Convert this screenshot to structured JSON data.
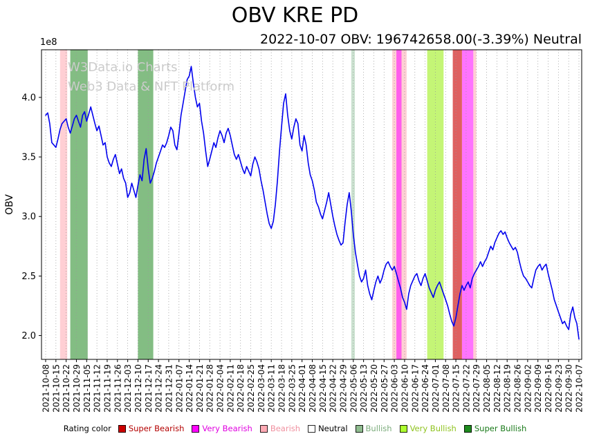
{
  "header": {
    "title": "OBV KRE PD",
    "subtitle": "2022-10-07 OBV: 196742658.00(-3.39%) Neutral"
  },
  "watermark": {
    "line1": "W3Data.io Charts",
    "line2": "Web3 Data & NFT Platform"
  },
  "axes": {
    "y_label": "OBV",
    "offset_label": "1e8"
  },
  "legend": {
    "title": "Rating color",
    "items": [
      {
        "label": "Super Bearish",
        "color": "#cc0000",
        "text_color": "#b40000"
      },
      {
        "label": "Very Bearish",
        "color": "#ff00ff",
        "text_color": "#e000e0"
      },
      {
        "label": "Bearish",
        "color": "#ffaab4",
        "text_color": "#f0909f"
      },
      {
        "label": "Neutral",
        "color": "#ffffff",
        "text_color": "#000000"
      },
      {
        "label": "Bullish",
        "color": "#8fbc8f",
        "text_color": "#7cac7c"
      },
      {
        "label": "Very Bullish",
        "color": "#adff2f",
        "text_color": "#8fc31f"
      },
      {
        "label": "Super Bullish",
        "color": "#1e8b1e",
        "text_color": "#1a7a1a"
      }
    ]
  },
  "chart_data": {
    "type": "line",
    "title": "OBV KRE PD",
    "ylabel": "OBV",
    "y_multiplier": "1e8",
    "latest": {
      "date": "2022-10-07",
      "obv": 196742658.0,
      "change_pct": -3.39,
      "rating": "Neutral"
    },
    "line_color": "#0000ee",
    "grid": "vertical dotted",
    "legend_position": "bottom outside",
    "ylim": [
      1.8,
      4.4
    ],
    "y_ticks": [
      2.0,
      2.5,
      3.0,
      3.5,
      4.0
    ],
    "y_tick_labels": [
      "2.0",
      "2.5",
      "3.0",
      "3.5",
      "4.0"
    ],
    "x_range_weeks": [
      0,
      52
    ],
    "x_tick_labels": [
      "2021-10-08",
      "2021-10-15",
      "2021-10-22",
      "2021-10-29",
      "2021-11-05",
      "2021-11-12",
      "2021-11-19",
      "2021-11-26",
      "2021-12-03",
      "2021-12-10",
      "2021-12-17",
      "2021-12-24",
      "2021-12-31",
      "2022-01-07",
      "2022-01-14",
      "2022-01-21",
      "2022-01-28",
      "2022-02-04",
      "2022-02-11",
      "2022-02-18",
      "2022-02-25",
      "2022-03-04",
      "2022-03-11",
      "2022-03-18",
      "2022-03-25",
      "2022-04-01",
      "2022-04-08",
      "2022-04-15",
      "2022-04-22",
      "2022-04-29",
      "2022-05-06",
      "2022-05-13",
      "2022-05-20",
      "2022-05-27",
      "2022-06-03",
      "2022-06-10",
      "2022-06-17",
      "2022-06-24",
      "2022-07-01",
      "2022-07-08",
      "2022-07-15",
      "2022-07-22",
      "2022-07-29",
      "2022-08-05",
      "2022-08-12",
      "2022-08-19",
      "2022-08-26",
      "2022-09-02",
      "2022-09-09",
      "2022-09-16",
      "2022-09-23",
      "2022-09-30",
      "2022-10-07"
    ],
    "series": [
      {
        "name": "OBV",
        "x_step_weeks": 0.2,
        "values": [
          3.85,
          3.87,
          3.78,
          3.62,
          3.6,
          3.58,
          3.65,
          3.73,
          3.78,
          3.8,
          3.82,
          3.75,
          3.7,
          3.76,
          3.82,
          3.85,
          3.8,
          3.75,
          3.85,
          3.88,
          3.8,
          3.86,
          3.92,
          3.85,
          3.78,
          3.72,
          3.76,
          3.68,
          3.6,
          3.62,
          3.5,
          3.45,
          3.42,
          3.48,
          3.52,
          3.44,
          3.36,
          3.4,
          3.32,
          3.28,
          3.16,
          3.2,
          3.28,
          3.22,
          3.16,
          3.26,
          3.35,
          3.3,
          3.48,
          3.57,
          3.4,
          3.28,
          3.32,
          3.38,
          3.45,
          3.5,
          3.55,
          3.6,
          3.58,
          3.62,
          3.68,
          3.75,
          3.72,
          3.6,
          3.56,
          3.7,
          3.85,
          3.95,
          4.05,
          4.15,
          4.18,
          4.26,
          4.12,
          4.0,
          3.92,
          3.95,
          3.8,
          3.7,
          3.55,
          3.42,
          3.48,
          3.55,
          3.62,
          3.58,
          3.66,
          3.72,
          3.68,
          3.62,
          3.7,
          3.74,
          3.68,
          3.6,
          3.52,
          3.48,
          3.52,
          3.46,
          3.4,
          3.36,
          3.42,
          3.38,
          3.34,
          3.44,
          3.5,
          3.46,
          3.4,
          3.3,
          3.22,
          3.12,
          3.02,
          2.94,
          2.9,
          2.96,
          3.1,
          3.3,
          3.55,
          3.75,
          3.95,
          4.03,
          3.85,
          3.72,
          3.65,
          3.75,
          3.82,
          3.78,
          3.6,
          3.55,
          3.68,
          3.6,
          3.45,
          3.35,
          3.3,
          3.22,
          3.12,
          3.08,
          3.02,
          2.98,
          3.05,
          3.12,
          3.2,
          3.1,
          3.0,
          2.92,
          2.85,
          2.8,
          2.76,
          2.78,
          2.95,
          3.1,
          3.2,
          3.05,
          2.85,
          2.7,
          2.6,
          2.5,
          2.45,
          2.48,
          2.55,
          2.42,
          2.35,
          2.3,
          2.38,
          2.45,
          2.5,
          2.44,
          2.48,
          2.55,
          2.6,
          2.62,
          2.58,
          2.55,
          2.58,
          2.52,
          2.46,
          2.4,
          2.32,
          2.28,
          2.22,
          2.35,
          2.42,
          2.46,
          2.5,
          2.52,
          2.46,
          2.42,
          2.48,
          2.52,
          2.46,
          2.4,
          2.36,
          2.32,
          2.38,
          2.42,
          2.45,
          2.4,
          2.35,
          2.3,
          2.25,
          2.18,
          2.12,
          2.08,
          2.15,
          2.25,
          2.35,
          2.42,
          2.38,
          2.42,
          2.45,
          2.4,
          2.48,
          2.52,
          2.55,
          2.58,
          2.62,
          2.58,
          2.62,
          2.65,
          2.7,
          2.75,
          2.72,
          2.78,
          2.82,
          2.86,
          2.88,
          2.85,
          2.87,
          2.82,
          2.78,
          2.75,
          2.72,
          2.74,
          2.7,
          2.62,
          2.55,
          2.5,
          2.48,
          2.45,
          2.42,
          2.4,
          2.48,
          2.55,
          2.58,
          2.6,
          2.55,
          2.58,
          2.6,
          2.52,
          2.45,
          2.38,
          2.3,
          2.25,
          2.2,
          2.15,
          2.1,
          2.12,
          2.08,
          2.05,
          2.18,
          2.24,
          2.15,
          2.1,
          1.97
        ]
      }
    ],
    "bands": [
      {
        "rating": "Bearish",
        "from": 1.4,
        "to": 2.1
      },
      {
        "rating": "Super Bullish",
        "from": 2.4,
        "to": 4.1
      },
      {
        "rating": "Super Bullish",
        "from": 9.0,
        "to": 10.5
      },
      {
        "rating": "Bullish",
        "from": 29.8,
        "to": 30.15
      },
      {
        "rating": "Bearish",
        "from": 33.8,
        "to": 35.2
      },
      {
        "rating": "Very Bearish",
        "from": 34.2,
        "to": 34.7
      },
      {
        "rating": "Very Bullish",
        "from": 37.2,
        "to": 38.8
      },
      {
        "rating": "Super Bearish",
        "from": 39.7,
        "to": 40.6
      },
      {
        "rating": "Very Bearish",
        "from": 40.6,
        "to": 41.7
      },
      {
        "rating": "Bearish",
        "from": 41.7,
        "to": 42.0
      }
    ],
    "band_colors": {
      "Super Bearish": "rgba(205,10,10,0.65)",
      "Very Bearish": "rgba(255,0,255,0.55)",
      "Bearish": "rgba(255,160,170,0.5)",
      "Neutral": "rgba(255,255,255,0)",
      "Bullish": "rgba(140,190,150,0.45)",
      "Very Bullish": "rgba(165,240,45,0.65)",
      "Super Bullish": "rgba(30,135,30,0.55)"
    }
  }
}
